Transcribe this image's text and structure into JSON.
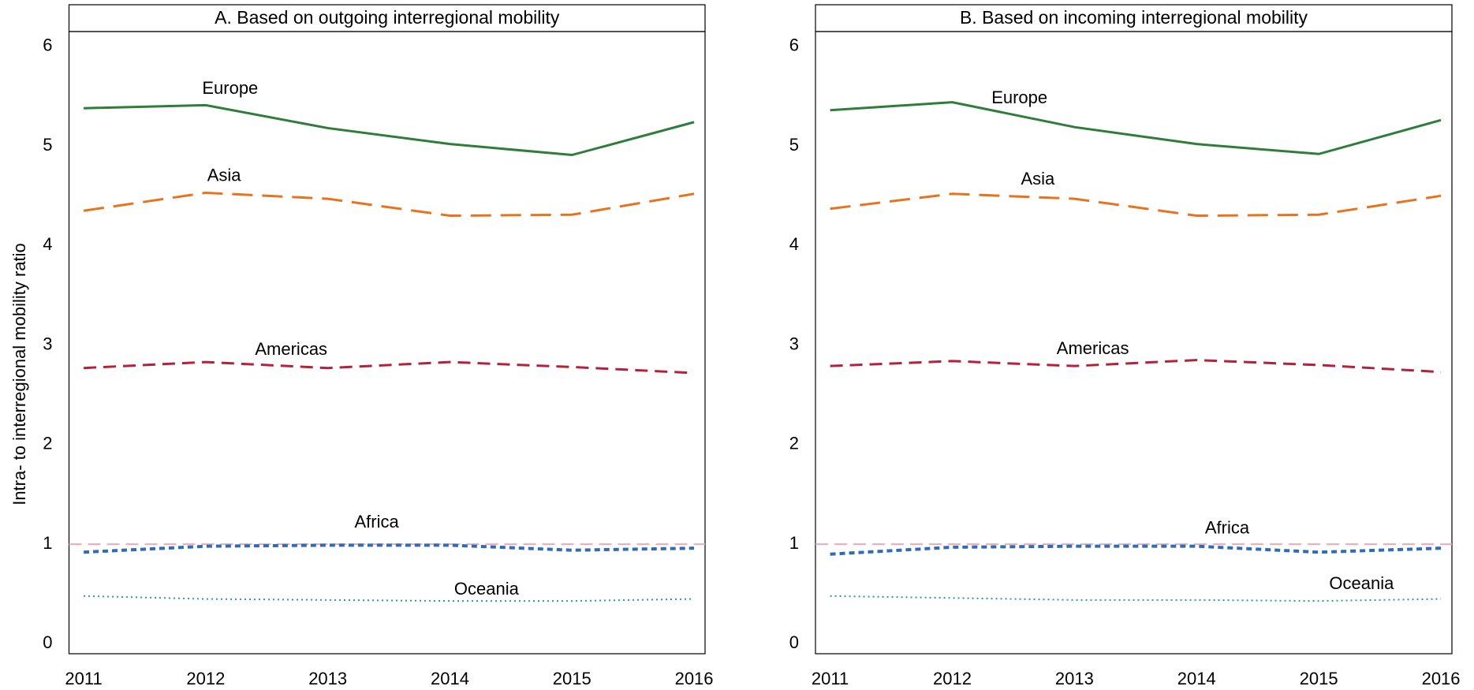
{
  "chart_data": [
    {
      "type": "line",
      "title": "A. Based on outgoing interregional mobility",
      "ylabel": "Intra- to interregional mobility ratio",
      "x": [
        2011,
        2012,
        2013,
        2014,
        2015,
        2016
      ],
      "xlim": [
        2010.88,
        2016.09
      ],
      "xticks": [
        2011,
        2012,
        2013,
        2014,
        2015,
        2016
      ],
      "ylim": [
        -0.1,
        6.15
      ],
      "yticks": [
        0,
        1,
        2,
        3,
        4,
        5,
        6
      ],
      "reference_line": {
        "value": 1,
        "color": "#f4a6b4"
      },
      "series": [
        {
          "name": "Europe",
          "color": "#2e7d3a",
          "dash": "solid",
          "values": [
            5.38,
            5.41,
            5.18,
            5.02,
            4.91,
            5.24
          ]
        },
        {
          "name": "Asia",
          "color": "#e8731c",
          "dash": "longdash",
          "values": [
            4.35,
            4.53,
            4.47,
            4.3,
            4.31,
            4.52
          ]
        },
        {
          "name": "Americas",
          "color": "#b5213a",
          "dash": "dash",
          "values": [
            2.77,
            2.83,
            2.77,
            2.83,
            2.78,
            2.72
          ]
        },
        {
          "name": "Africa",
          "color": "#2e6db4",
          "dash": "shortdash",
          "values": [
            0.92,
            0.98,
            0.99,
            0.99,
            0.94,
            0.96
          ]
        },
        {
          "name": "Oceania",
          "color": "#2a9d8f",
          "dash": "dot",
          "values": [
            0.48,
            0.45,
            0.44,
            0.43,
            0.43,
            0.45
          ]
        }
      ]
    },
    {
      "type": "line",
      "title": "B. Based on incoming interregional mobility",
      "x": [
        2011,
        2012,
        2013,
        2014,
        2015,
        2016
      ],
      "xlim": [
        2010.88,
        2016.09
      ],
      "xticks": [
        2011,
        2012,
        2013,
        2014,
        2015,
        2016
      ],
      "ylim": [
        -0.1,
        6.15
      ],
      "yticks": [
        0,
        1,
        2,
        3,
        4,
        5,
        6
      ],
      "reference_line": {
        "value": 1,
        "color": "#f4a6b4"
      },
      "series": [
        {
          "name": "Europe",
          "color": "#2e7d3a",
          "dash": "solid",
          "values": [
            5.36,
            5.44,
            5.19,
            5.02,
            4.92,
            5.26
          ]
        },
        {
          "name": "Asia",
          "color": "#e8731c",
          "dash": "longdash",
          "values": [
            4.37,
            4.52,
            4.47,
            4.3,
            4.31,
            4.5
          ]
        },
        {
          "name": "Americas",
          "color": "#b5213a",
          "dash": "dash",
          "values": [
            2.79,
            2.84,
            2.79,
            2.85,
            2.8,
            2.73
          ]
        },
        {
          "name": "Africa",
          "color": "#2e6db4",
          "dash": "shortdash",
          "values": [
            0.9,
            0.97,
            0.98,
            0.98,
            0.92,
            0.96
          ]
        },
        {
          "name": "Oceania",
          "color": "#2a9d8f",
          "dash": "dot",
          "values": [
            0.48,
            0.46,
            0.44,
            0.44,
            0.43,
            0.45
          ]
        }
      ]
    }
  ]
}
